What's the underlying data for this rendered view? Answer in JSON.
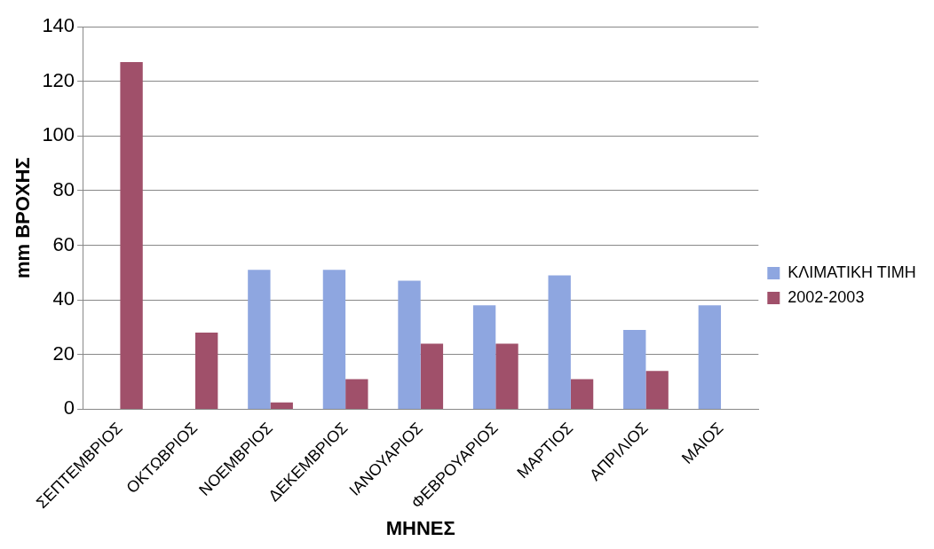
{
  "chart_data": {
    "type": "bar",
    "xlabel": "ΜΗΝΕΣ",
    "ylabel": "mm ΒΡΟΧΗΣ",
    "categories": [
      "ΣΕΠΤΕΜΒΡΙΟΣ",
      "ΟΚΤΩΒΡΙΟΣ",
      "ΝΟΕΜΒΡΙΟΣ",
      "ΔΕΚΕΜΒΡΙΟΣ",
      "ΙΑΝΟΥΑΡΙΟΣ",
      "ΦΕΒΡΟΥΑΡΙΟΣ",
      "ΜΑΡΤΙΟΣ",
      "ΑΠΡΙΛΙΟΣ",
      "ΜΑΙΟΣ"
    ],
    "series": [
      {
        "name": "ΚΛΙΜΑΤΙΚΗ ΤΙΜΗ",
        "color": "#8ea6e0",
        "values": [
          null,
          null,
          51,
          51,
          47,
          38,
          49,
          29,
          38
        ]
      },
      {
        "name": "2002-2003",
        "color": "#a0506a",
        "values": [
          127,
          28,
          2.5,
          11,
          24,
          24,
          11,
          14,
          null
        ]
      }
    ],
    "ylim": [
      0,
      140
    ],
    "yticks": [
      0,
      20,
      40,
      60,
      80,
      100,
      120,
      140
    ],
    "grid": "y",
    "legend": "right"
  }
}
